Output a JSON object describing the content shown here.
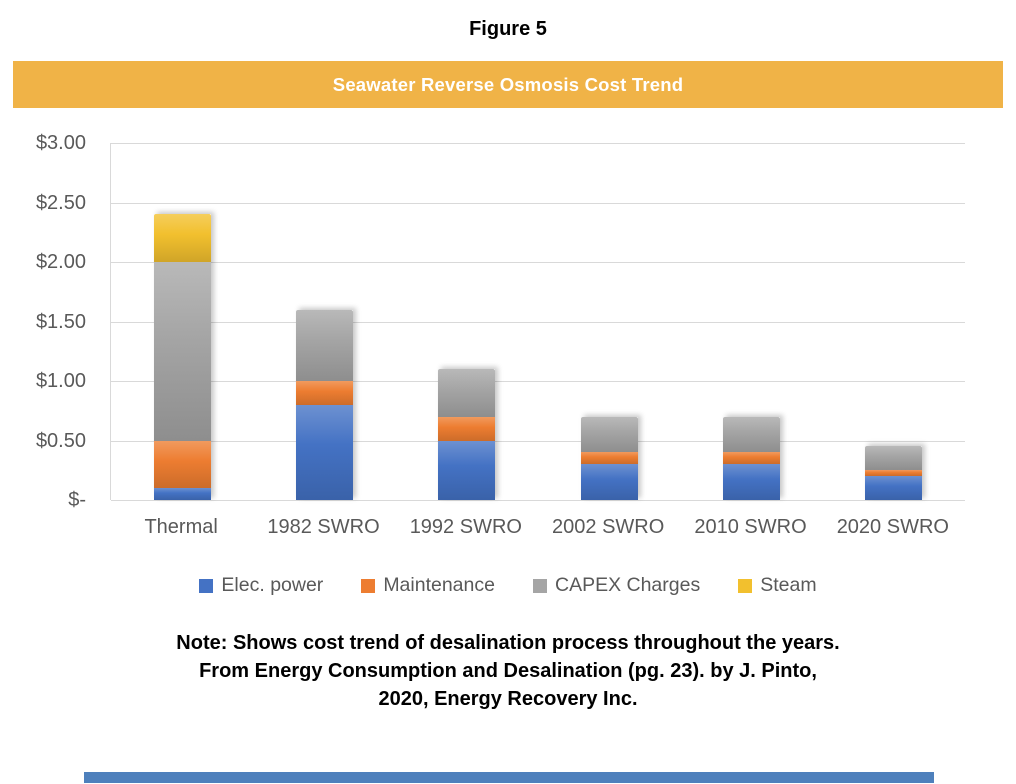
{
  "figure_label": "Figure 5",
  "banner": {
    "title": "Seawater Reverse Osmosis Cost Trend"
  },
  "note": {
    "lines": [
      "Note: Shows cost trend of desalination process throughout the years.",
      "From Energy Consumption and Desalination (pg. 23). by J. Pinto,",
      "2020, Energy Recovery Inc."
    ]
  },
  "colors": {
    "banner_bg": "#F0B347",
    "banner_text": "#FFFFFF",
    "grid": "#D9D9D9",
    "axis_text": "#595959",
    "note_text": "#000000",
    "bottom_accent": "#4E80BC",
    "page_bg": "#FFFFFF"
  },
  "chart_data": {
    "type": "bar",
    "stacked": true,
    "title": "Seawater Reverse Osmosis Cost Trend",
    "categories": [
      "Thermal",
      "1982 SWRO",
      "1992 SWRO",
      "2002 SWRO",
      "2010 SWRO",
      "2020 SWRO"
    ],
    "series": [
      {
        "name": "Elec. power",
        "color": "#4472C4",
        "values": [
          0.1,
          0.8,
          0.5,
          0.3,
          0.3,
          0.2
        ]
      },
      {
        "name": "Maintenance",
        "color": "#ED7D31",
        "values": [
          0.4,
          0.2,
          0.2,
          0.1,
          0.1,
          0.05
        ]
      },
      {
        "name": "CAPEX Charges",
        "color": "#A5A5A5",
        "values": [
          1.5,
          0.6,
          0.4,
          0.3,
          0.3,
          0.2
        ]
      },
      {
        "name": "Steam",
        "color": "#F2C02E",
        "values": [
          0.4,
          0.0,
          0.0,
          0.0,
          0.0,
          0.0
        ]
      }
    ],
    "totals": [
      2.4,
      1.6,
      1.1,
      0.7,
      0.7,
      0.45
    ],
    "y_ticks": [
      "$3.00",
      "$2.50",
      "$2.00",
      "$1.50",
      "$1.00",
      "$0.50",
      "$-"
    ],
    "ylim": [
      0,
      3
    ],
    "xlabel": "",
    "ylabel": "",
    "grid": "horizontal",
    "legend_position": "bottom",
    "unit": "$ per unit of water"
  }
}
